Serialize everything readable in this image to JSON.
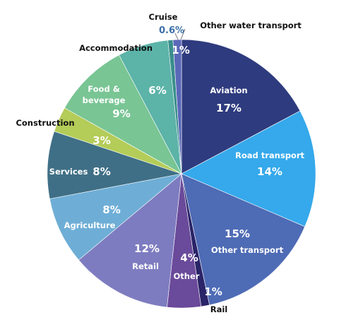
{
  "chart_data": {
    "type": "pie",
    "title": "",
    "slices": [
      {
        "name": "Aviation",
        "value": 17,
        "label": "17%",
        "color": "#2e3b7e"
      },
      {
        "name": "Road transport",
        "value": 14,
        "label": "14%",
        "color": "#35a9eb"
      },
      {
        "name": "Other transport",
        "value": 15,
        "label": "15%",
        "color": "#4e6bb5"
      },
      {
        "name": "Rail",
        "value": 1,
        "label": "1%",
        "color": "#2a2468"
      },
      {
        "name": "Other",
        "value": 4,
        "label": "4%",
        "color": "#6a4a9a"
      },
      {
        "name": "Retail",
        "value": 12,
        "label": "12%",
        "color": "#7e7cc0"
      },
      {
        "name": "Agriculture",
        "value": 8,
        "label": "8%",
        "color": "#6eaed6"
      },
      {
        "name": "Services",
        "value": 8,
        "label": "8%",
        "color": "#3f6f86"
      },
      {
        "name": "Construction",
        "value": 3,
        "label": "3%",
        "color": "#b4cc58"
      },
      {
        "name": "Food & beverage",
        "value": 9,
        "label": "9%",
        "color": "#79c594"
      },
      {
        "name": "Accommodation",
        "value": 6,
        "label": "6%",
        "color": "#5cb3a8"
      },
      {
        "name": "Cruise",
        "value": 0.6,
        "label": "0.6%",
        "color": "#3a8e8c"
      },
      {
        "name": "Other water transport",
        "value": 1,
        "label": "1%",
        "color": "#5a68b8"
      }
    ]
  }
}
